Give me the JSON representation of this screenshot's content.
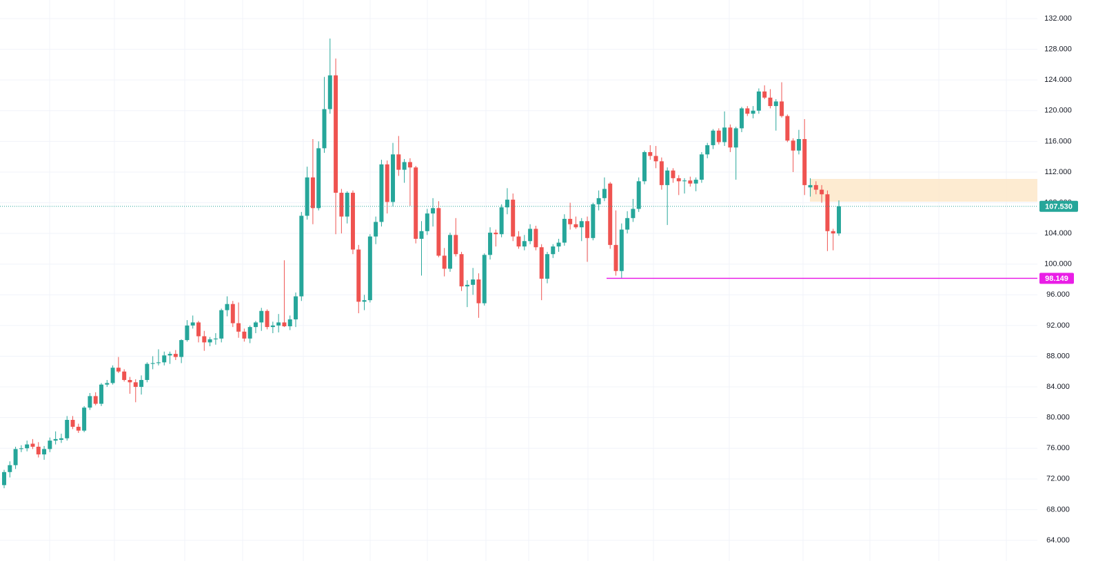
{
  "chart_data": {
    "type": "candlestick",
    "up_color": "#26a69a",
    "down_color": "#ef5350",
    "ylim": [
      64,
      132
    ],
    "yticks": [
      {
        "value": 64,
        "label": "64.000"
      },
      {
        "value": 68,
        "label": "68.000"
      },
      {
        "value": 72,
        "label": "72.000"
      },
      {
        "value": 76,
        "label": "76.000"
      },
      {
        "value": 80,
        "label": "80.000"
      },
      {
        "value": 84,
        "label": "84.000"
      },
      {
        "value": 88,
        "label": "88.000"
      },
      {
        "value": 92,
        "label": "92.000"
      },
      {
        "value": 96,
        "label": "96.000"
      },
      {
        "value": 100,
        "label": "100.000"
      },
      {
        "value": 104,
        "label": "104.000"
      },
      {
        "value": 108,
        "label": "108.000"
      },
      {
        "value": 112,
        "label": "112.000"
      },
      {
        "value": 116,
        "label": "116.000"
      },
      {
        "value": 120,
        "label": "120.000"
      },
      {
        "value": 124,
        "label": "124.000"
      },
      {
        "value": 128,
        "label": "128.000"
      },
      {
        "value": 132,
        "label": "132.000"
      }
    ],
    "grid": true,
    "last_price": {
      "value": 107.53,
      "label": "107.530",
      "color": "#26a69a"
    },
    "level": {
      "value": 98.149,
      "color": "#e91ee6"
    },
    "zone": {
      "low": 108.14,
      "high": 111.1,
      "color": "#fde7c9"
    },
    "candles": [
      {
        "o": 71.2,
        "h": 73.2,
        "l": 70.8,
        "c": 72.9
      },
      {
        "o": 72.9,
        "h": 74.3,
        "l": 72.2,
        "c": 73.8
      },
      {
        "o": 73.8,
        "h": 76.2,
        "l": 73.3,
        "c": 75.9
      },
      {
        "o": 75.9,
        "h": 76.4,
        "l": 75.5,
        "c": 76.0
      },
      {
        "o": 76.0,
        "h": 77.0,
        "l": 75.6,
        "c": 76.5
      },
      {
        "o": 76.6,
        "h": 77.2,
        "l": 75.9,
        "c": 76.2
      },
      {
        "o": 76.2,
        "h": 76.8,
        "l": 74.8,
        "c": 75.2
      },
      {
        "o": 75.2,
        "h": 76.3,
        "l": 74.5,
        "c": 75.9
      },
      {
        "o": 75.9,
        "h": 77.4,
        "l": 75.5,
        "c": 77.0
      },
      {
        "o": 77.0,
        "h": 78.2,
        "l": 76.5,
        "c": 77.2
      },
      {
        "o": 77.1,
        "h": 77.9,
        "l": 76.7,
        "c": 77.3
      },
      {
        "o": 77.3,
        "h": 80.2,
        "l": 77.0,
        "c": 79.7
      },
      {
        "o": 79.7,
        "h": 80.2,
        "l": 78.5,
        "c": 78.8
      },
      {
        "o": 78.8,
        "h": 79.2,
        "l": 78.0,
        "c": 78.3
      },
      {
        "o": 78.3,
        "h": 81.5,
        "l": 78.1,
        "c": 81.3
      },
      {
        "o": 81.3,
        "h": 83.2,
        "l": 81.0,
        "c": 82.8
      },
      {
        "o": 82.8,
        "h": 83.3,
        "l": 81.6,
        "c": 81.8
      },
      {
        "o": 81.8,
        "h": 84.5,
        "l": 81.5,
        "c": 84.3
      },
      {
        "o": 84.3,
        "h": 84.9,
        "l": 84.0,
        "c": 84.5
      },
      {
        "o": 84.5,
        "h": 86.8,
        "l": 84.3,
        "c": 86.5
      },
      {
        "o": 86.5,
        "h": 87.9,
        "l": 85.8,
        "c": 86.0
      },
      {
        "o": 86.0,
        "h": 86.3,
        "l": 84.7,
        "c": 84.9
      },
      {
        "o": 84.9,
        "h": 85.3,
        "l": 83.1,
        "c": 84.6
      },
      {
        "o": 84.6,
        "h": 85.0,
        "l": 82.0,
        "c": 84.0
      },
      {
        "o": 84.0,
        "h": 85.5,
        "l": 83.0,
        "c": 84.9
      },
      {
        "o": 84.9,
        "h": 87.2,
        "l": 84.6,
        "c": 87.0
      },
      {
        "o": 87.0,
        "h": 88.0,
        "l": 86.3,
        "c": 87.1
      },
      {
        "o": 87.1,
        "h": 88.9,
        "l": 86.8,
        "c": 87.2
      },
      {
        "o": 87.2,
        "h": 88.6,
        "l": 86.8,
        "c": 88.1
      },
      {
        "o": 88.1,
        "h": 88.6,
        "l": 87.0,
        "c": 88.3
      },
      {
        "o": 88.3,
        "h": 88.8,
        "l": 87.5,
        "c": 87.9
      },
      {
        "o": 87.9,
        "h": 90.2,
        "l": 87.1,
        "c": 90.1
      },
      {
        "o": 90.1,
        "h": 92.7,
        "l": 89.9,
        "c": 92.0
      },
      {
        "o": 92.0,
        "h": 93.3,
        "l": 91.6,
        "c": 92.4
      },
      {
        "o": 92.4,
        "h": 92.6,
        "l": 89.8,
        "c": 90.6
      },
      {
        "o": 90.6,
        "h": 91.3,
        "l": 88.7,
        "c": 89.8
      },
      {
        "o": 89.8,
        "h": 90.5,
        "l": 89.3,
        "c": 90.2
      },
      {
        "o": 90.2,
        "h": 91.0,
        "l": 89.5,
        "c": 90.3
      },
      {
        "o": 90.3,
        "h": 94.2,
        "l": 89.8,
        "c": 94.0
      },
      {
        "o": 94.0,
        "h": 95.8,
        "l": 93.2,
        "c": 94.8
      },
      {
        "o": 94.8,
        "h": 95.2,
        "l": 91.8,
        "c": 92.3
      },
      {
        "o": 92.3,
        "h": 95.0,
        "l": 90.4,
        "c": 91.2
      },
      {
        "o": 91.2,
        "h": 91.6,
        "l": 89.9,
        "c": 90.3
      },
      {
        "o": 90.3,
        "h": 92.0,
        "l": 89.7,
        "c": 91.8
      },
      {
        "o": 91.8,
        "h": 92.6,
        "l": 91.0,
        "c": 92.4
      },
      {
        "o": 92.4,
        "h": 94.3,
        "l": 91.3,
        "c": 93.9
      },
      {
        "o": 93.9,
        "h": 94.1,
        "l": 91.5,
        "c": 91.8
      },
      {
        "o": 91.8,
        "h": 92.5,
        "l": 91.0,
        "c": 92.0
      },
      {
        "o": 92.0,
        "h": 93.5,
        "l": 91.1,
        "c": 92.4
      },
      {
        "o": 92.4,
        "h": 100.5,
        "l": 91.8,
        "c": 91.9
      },
      {
        "o": 91.9,
        "h": 93.3,
        "l": 91.4,
        "c": 92.8
      },
      {
        "o": 92.8,
        "h": 96.3,
        "l": 91.8,
        "c": 95.8
      },
      {
        "o": 95.8,
        "h": 106.8,
        "l": 95.2,
        "c": 106.3
      },
      {
        "o": 106.3,
        "h": 112.7,
        "l": 105.8,
        "c": 111.3
      },
      {
        "o": 111.3,
        "h": 116.3,
        "l": 105.2,
        "c": 107.3
      },
      {
        "o": 107.3,
        "h": 116.0,
        "l": 107.0,
        "c": 115.1
      },
      {
        "o": 115.1,
        "h": 124.4,
        "l": 114.5,
        "c": 120.2
      },
      {
        "o": 120.2,
        "h": 129.4,
        "l": 119.6,
        "c": 124.6
      },
      {
        "o": 124.6,
        "h": 126.8,
        "l": 103.9,
        "c": 109.3
      },
      {
        "o": 109.3,
        "h": 109.8,
        "l": 104.0,
        "c": 106.2
      },
      {
        "o": 106.2,
        "h": 109.5,
        "l": 105.3,
        "c": 109.3
      },
      {
        "o": 109.3,
        "h": 109.6,
        "l": 101.3,
        "c": 101.9
      },
      {
        "o": 101.9,
        "h": 102.5,
        "l": 93.6,
        "c": 95.1
      },
      {
        "o": 95.1,
        "h": 96.0,
        "l": 94.0,
        "c": 95.3
      },
      {
        "o": 95.3,
        "h": 103.9,
        "l": 95.0,
        "c": 103.6
      },
      {
        "o": 103.6,
        "h": 106.2,
        "l": 102.6,
        "c": 105.5
      },
      {
        "o": 105.5,
        "h": 113.6,
        "l": 104.9,
        "c": 113.0
      },
      {
        "o": 113.0,
        "h": 113.5,
        "l": 106.6,
        "c": 108.1
      },
      {
        "o": 108.1,
        "h": 115.8,
        "l": 107.5,
        "c": 114.3
      },
      {
        "o": 114.3,
        "h": 116.7,
        "l": 111.5,
        "c": 112.3
      },
      {
        "o": 112.3,
        "h": 113.7,
        "l": 110.6,
        "c": 113.3
      },
      {
        "o": 113.3,
        "h": 113.8,
        "l": 107.6,
        "c": 112.6
      },
      {
        "o": 112.6,
        "h": 112.8,
        "l": 102.7,
        "c": 103.3
      },
      {
        "o": 103.3,
        "h": 105.6,
        "l": 98.5,
        "c": 104.3
      },
      {
        "o": 104.3,
        "h": 107.2,
        "l": 103.8,
        "c": 106.6
      },
      {
        "o": 106.6,
        "h": 108.6,
        "l": 104.9,
        "c": 107.3
      },
      {
        "o": 107.3,
        "h": 108.2,
        "l": 100.9,
        "c": 101.1
      },
      {
        "o": 101.1,
        "h": 102.1,
        "l": 98.4,
        "c": 99.4
      },
      {
        "o": 99.4,
        "h": 104.1,
        "l": 99.0,
        "c": 103.8
      },
      {
        "o": 103.8,
        "h": 106.0,
        "l": 101.0,
        "c": 101.3
      },
      {
        "o": 101.3,
        "h": 101.6,
        "l": 96.5,
        "c": 97.1
      },
      {
        "o": 97.1,
        "h": 97.9,
        "l": 94.4,
        "c": 97.3
      },
      {
        "o": 97.3,
        "h": 99.5,
        "l": 96.0,
        "c": 98.0
      },
      {
        "o": 98.0,
        "h": 98.8,
        "l": 93.0,
        "c": 94.9
      },
      {
        "o": 94.9,
        "h": 101.4,
        "l": 94.6,
        "c": 101.2
      },
      {
        "o": 101.2,
        "h": 104.8,
        "l": 100.6,
        "c": 104.1
      },
      {
        "o": 104.1,
        "h": 104.5,
        "l": 102.3,
        "c": 103.9
      },
      {
        "o": 103.9,
        "h": 107.8,
        "l": 103.5,
        "c": 107.4
      },
      {
        "o": 107.4,
        "h": 109.9,
        "l": 106.5,
        "c": 108.4
      },
      {
        "o": 108.4,
        "h": 109.2,
        "l": 103.0,
        "c": 103.6
      },
      {
        "o": 103.6,
        "h": 104.3,
        "l": 102.0,
        "c": 102.3
      },
      {
        "o": 102.3,
        "h": 103.8,
        "l": 101.8,
        "c": 103.0
      },
      {
        "o": 103.0,
        "h": 105.2,
        "l": 102.6,
        "c": 104.6
      },
      {
        "o": 104.6,
        "h": 105.0,
        "l": 101.8,
        "c": 102.2
      },
      {
        "o": 102.2,
        "h": 102.6,
        "l": 95.3,
        "c": 98.1
      },
      {
        "o": 98.1,
        "h": 101.6,
        "l": 97.5,
        "c": 101.3
      },
      {
        "o": 101.3,
        "h": 102.6,
        "l": 100.8,
        "c": 102.3
      },
      {
        "o": 102.3,
        "h": 103.3,
        "l": 101.6,
        "c": 102.8
      },
      {
        "o": 102.8,
        "h": 106.5,
        "l": 102.4,
        "c": 105.9
      },
      {
        "o": 105.9,
        "h": 108.0,
        "l": 104.5,
        "c": 105.2
      },
      {
        "o": 105.2,
        "h": 106.2,
        "l": 104.6,
        "c": 104.8
      },
      {
        "o": 104.8,
        "h": 106.0,
        "l": 103.0,
        "c": 105.6
      },
      {
        "o": 105.6,
        "h": 106.2,
        "l": 100.3,
        "c": 103.4
      },
      {
        "o": 103.4,
        "h": 108.0,
        "l": 103.1,
        "c": 107.8
      },
      {
        "o": 107.8,
        "h": 109.6,
        "l": 107.0,
        "c": 108.6
      },
      {
        "o": 108.6,
        "h": 111.3,
        "l": 108.2,
        "c": 109.8
      },
      {
        "o": 110.5,
        "h": 110.7,
        "l": 102.0,
        "c": 102.5
      },
      {
        "o": 102.5,
        "h": 107.0,
        "l": 98.5,
        "c": 99.1
      },
      {
        "o": 99.1,
        "h": 105.3,
        "l": 98.2,
        "c": 104.5
      },
      {
        "o": 104.5,
        "h": 106.9,
        "l": 104.0,
        "c": 106.0
      },
      {
        "o": 106.0,
        "h": 108.5,
        "l": 105.5,
        "c": 107.2
      },
      {
        "o": 107.2,
        "h": 111.3,
        "l": 106.8,
        "c": 110.8
      },
      {
        "o": 110.8,
        "h": 114.8,
        "l": 110.4,
        "c": 114.6
      },
      {
        "o": 114.6,
        "h": 115.5,
        "l": 113.6,
        "c": 114.1
      },
      {
        "o": 114.1,
        "h": 115.4,
        "l": 112.5,
        "c": 113.4
      },
      {
        "o": 113.4,
        "h": 113.9,
        "l": 109.7,
        "c": 110.3
      },
      {
        "o": 110.3,
        "h": 112.6,
        "l": 105.1,
        "c": 112.2
      },
      {
        "o": 112.2,
        "h": 112.5,
        "l": 110.6,
        "c": 111.2
      },
      {
        "o": 111.2,
        "h": 111.6,
        "l": 109.0,
        "c": 110.8
      },
      {
        "o": 110.8,
        "h": 111.2,
        "l": 109.2,
        "c": 110.9
      },
      {
        "o": 110.9,
        "h": 111.4,
        "l": 110.1,
        "c": 110.5
      },
      {
        "o": 110.5,
        "h": 111.3,
        "l": 109.5,
        "c": 111.0
      },
      {
        "o": 111.0,
        "h": 114.6,
        "l": 110.6,
        "c": 114.3
      },
      {
        "o": 114.3,
        "h": 115.8,
        "l": 113.8,
        "c": 115.5
      },
      {
        "o": 115.5,
        "h": 117.6,
        "l": 115.0,
        "c": 117.4
      },
      {
        "o": 117.4,
        "h": 117.7,
        "l": 115.6,
        "c": 115.9
      },
      {
        "o": 115.9,
        "h": 119.9,
        "l": 115.4,
        "c": 117.8
      },
      {
        "o": 117.8,
        "h": 118.2,
        "l": 114.6,
        "c": 115.2
      },
      {
        "o": 115.2,
        "h": 117.9,
        "l": 111.0,
        "c": 117.7
      },
      {
        "o": 117.7,
        "h": 120.5,
        "l": 117.2,
        "c": 120.3
      },
      {
        "o": 120.3,
        "h": 120.6,
        "l": 119.3,
        "c": 119.6
      },
      {
        "o": 119.6,
        "h": 120.6,
        "l": 119.0,
        "c": 120.0
      },
      {
        "o": 120.0,
        "h": 122.9,
        "l": 119.6,
        "c": 122.5
      },
      {
        "o": 122.5,
        "h": 123.3,
        "l": 121.5,
        "c": 121.7
      },
      {
        "o": 121.7,
        "h": 122.8,
        "l": 120.3,
        "c": 120.6
      },
      {
        "o": 120.6,
        "h": 121.5,
        "l": 117.4,
        "c": 121.2
      },
      {
        "o": 121.2,
        "h": 123.7,
        "l": 119.1,
        "c": 119.3
      },
      {
        "o": 119.3,
        "h": 119.5,
        "l": 115.9,
        "c": 116.1
      },
      {
        "o": 116.1,
        "h": 116.4,
        "l": 112.0,
        "c": 114.8
      },
      {
        "o": 114.8,
        "h": 117.5,
        "l": 114.3,
        "c": 116.3
      },
      {
        "o": 116.3,
        "h": 118.9,
        "l": 109.0,
        "c": 110.3
      },
      {
        "o": 110.0,
        "h": 111.2,
        "l": 108.8,
        "c": 110.3
      },
      {
        "o": 110.3,
        "h": 110.8,
        "l": 109.1,
        "c": 109.7
      },
      {
        "o": 109.7,
        "h": 110.3,
        "l": 108.0,
        "c": 109.1
      },
      {
        "o": 109.1,
        "h": 109.6,
        "l": 101.7,
        "c": 104.3
      },
      {
        "o": 104.3,
        "h": 104.6,
        "l": 101.8,
        "c": 104.0
      },
      {
        "o": 104.0,
        "h": 108.3,
        "l": 103.7,
        "c": 107.53
      }
    ]
  }
}
